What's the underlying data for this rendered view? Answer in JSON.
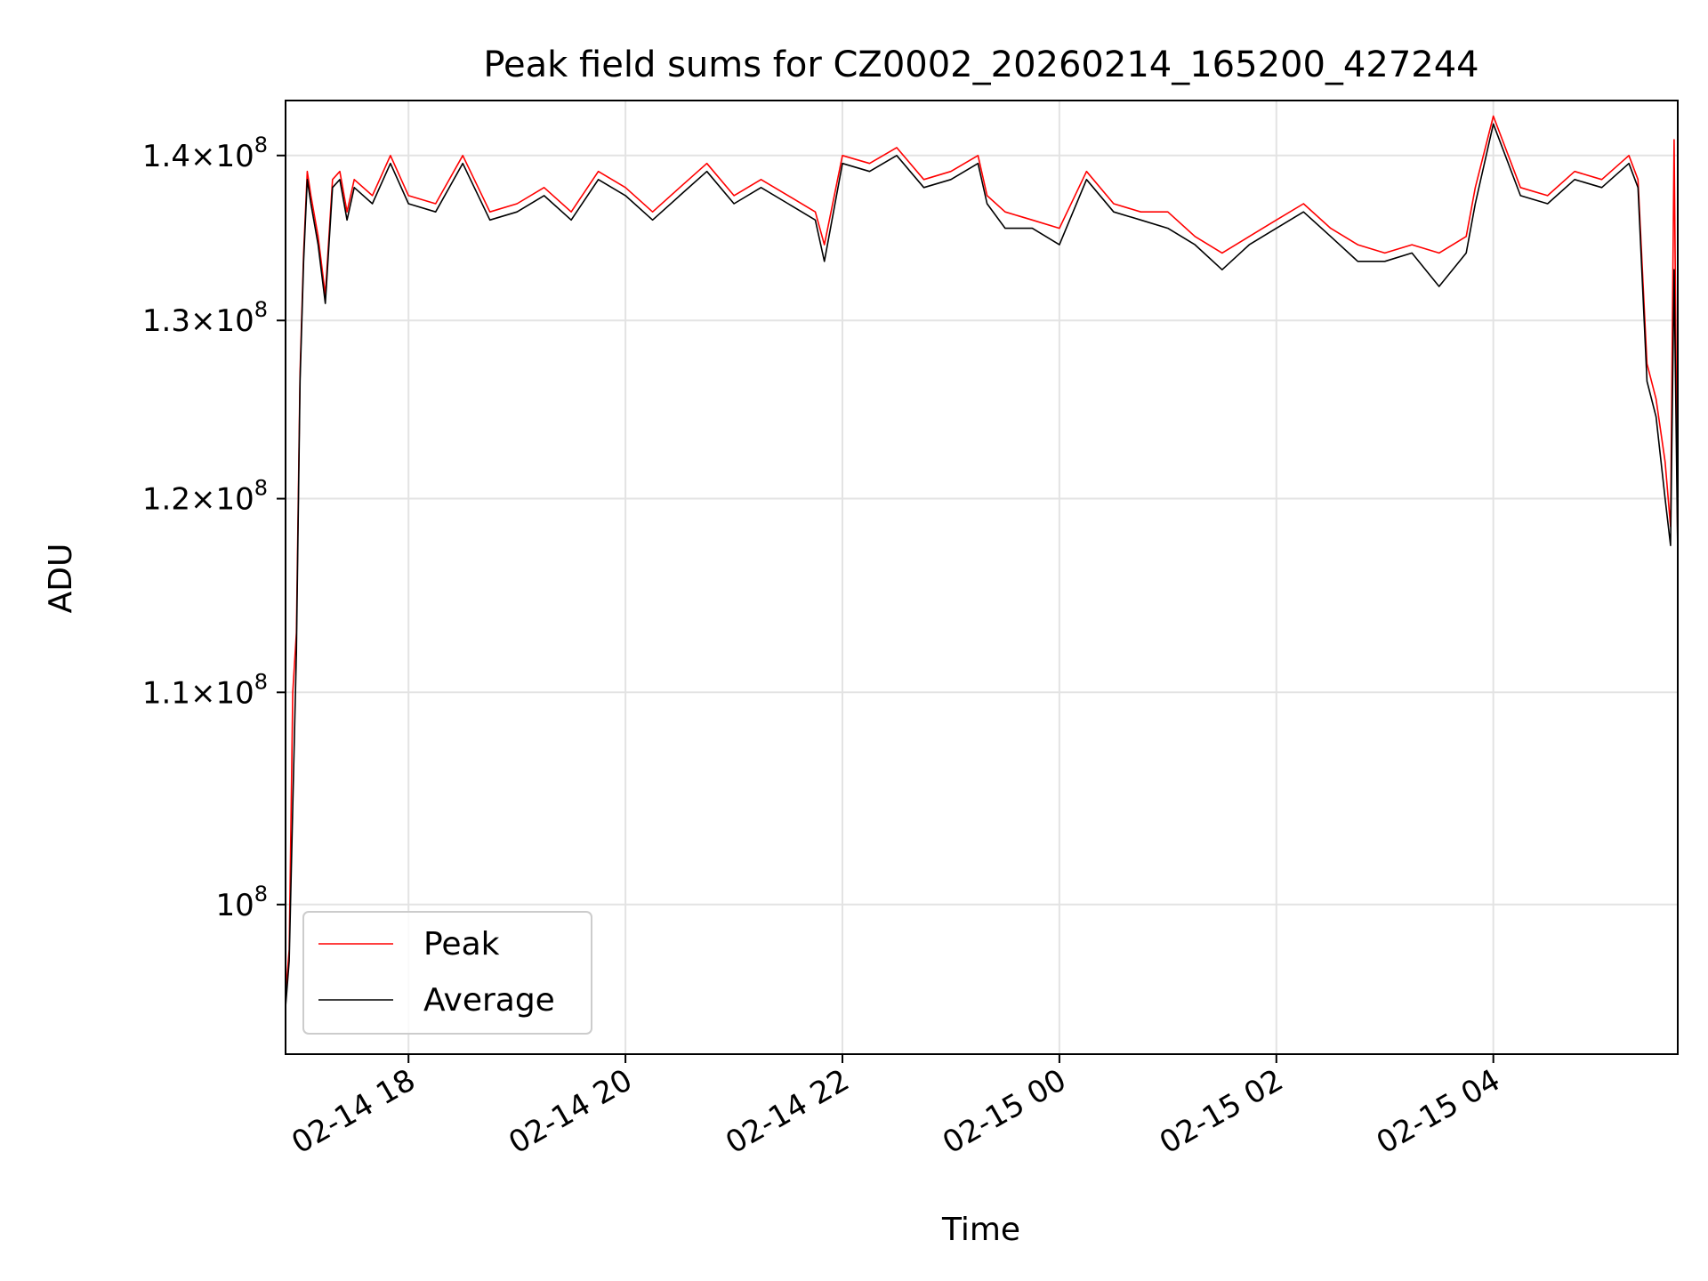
{
  "chart_data": {
    "type": "line",
    "title": "Peak field sums for CZ0002_20260214_165200_427244",
    "xlabel": "Time",
    "ylabel": "ADU",
    "y_scale": "log",
    "ylim": [
      93500000,
      143500000
    ],
    "xlim": [
      "2026-02-14 16:52",
      "2026-02-15 05:42"
    ],
    "grid": true,
    "legend_position": "lower-left",
    "x_ticks": [
      {
        "value": "2026-02-14 18:00",
        "label": "02-14 18"
      },
      {
        "value": "2026-02-14 20:00",
        "label": "02-14 20"
      },
      {
        "value": "2026-02-14 22:00",
        "label": "02-14 22"
      },
      {
        "value": "2026-02-15 00:00",
        "label": "02-15 00"
      },
      {
        "value": "2026-02-15 02:00",
        "label": "02-15 02"
      },
      {
        "value": "2026-02-15 04:00",
        "label": "02-15 04"
      }
    ],
    "y_ticks": [
      {
        "value": 100000000,
        "mantissa": "",
        "exponent": "8"
      },
      {
        "value": 110000000,
        "mantissa": "1.1",
        "exponent": "8"
      },
      {
        "value": 120000000,
        "mantissa": "1.2",
        "exponent": "8"
      },
      {
        "value": 130000000,
        "mantissa": "1.3",
        "exponent": "8"
      },
      {
        "value": 140000000,
        "mantissa": "1.4",
        "exponent": "8"
      }
    ],
    "series": [
      {
        "name": "Peak",
        "color": "#ff0000",
        "x": [
          "2026-02-14 16:52",
          "2026-02-14 16:54",
          "2026-02-14 16:56",
          "2026-02-14 16:58",
          "2026-02-14 17:00",
          "2026-02-14 17:02",
          "2026-02-14 17:04",
          "2026-02-14 17:06",
          "2026-02-14 17:10",
          "2026-02-14 17:14",
          "2026-02-14 17:18",
          "2026-02-14 17:22",
          "2026-02-14 17:26",
          "2026-02-14 17:30",
          "2026-02-14 17:40",
          "2026-02-14 17:50",
          "2026-02-14 18:00",
          "2026-02-14 18:15",
          "2026-02-14 18:30",
          "2026-02-14 18:45",
          "2026-02-14 19:00",
          "2026-02-14 19:15",
          "2026-02-14 19:30",
          "2026-02-14 19:45",
          "2026-02-14 20:00",
          "2026-02-14 20:15",
          "2026-02-14 20:30",
          "2026-02-14 20:45",
          "2026-02-14 21:00",
          "2026-02-14 21:15",
          "2026-02-14 21:30",
          "2026-02-14 21:45",
          "2026-02-14 21:50",
          "2026-02-14 22:00",
          "2026-02-14 22:15",
          "2026-02-14 22:30",
          "2026-02-14 22:45",
          "2026-02-14 23:00",
          "2026-02-14 23:15",
          "2026-02-14 23:20",
          "2026-02-14 23:30",
          "2026-02-14 23:45",
          "2026-02-15 00:00",
          "2026-02-15 00:15",
          "2026-02-15 00:30",
          "2026-02-15 00:45",
          "2026-02-15 01:00",
          "2026-02-15 01:15",
          "2026-02-15 01:30",
          "2026-02-15 01:45",
          "2026-02-15 02:00",
          "2026-02-15 02:15",
          "2026-02-15 02:30",
          "2026-02-15 02:45",
          "2026-02-15 03:00",
          "2026-02-15 03:15",
          "2026-02-15 03:30",
          "2026-02-15 03:45",
          "2026-02-15 03:50",
          "2026-02-15 04:00",
          "2026-02-15 04:15",
          "2026-02-15 04:30",
          "2026-02-15 04:45",
          "2026-02-15 05:00",
          "2026-02-15 05:15",
          "2026-02-15 05:20",
          "2026-02-15 05:25",
          "2026-02-15 05:30",
          "2026-02-15 05:35",
          "2026-02-15 05:38",
          "2026-02-15 05:40",
          "2026-02-15 05:42"
        ],
        "values": [
          96000000,
          98000000,
          110000000,
          113000000,
          127000000,
          134000000,
          139000000,
          137500000,
          135000000,
          131500000,
          138500000,
          139000000,
          136500000,
          138500000,
          137500000,
          140000000,
          137500000,
          137000000,
          140000000,
          136500000,
          137000000,
          138000000,
          136500000,
          139000000,
          138000000,
          136500000,
          138000000,
          139500000,
          137500000,
          138500000,
          137500000,
          136500000,
          134500000,
          140000000,
          139500000,
          140500000,
          138500000,
          139000000,
          140000000,
          137500000,
          136500000,
          136000000,
          135500000,
          139000000,
          137000000,
          136500000,
          136500000,
          135000000,
          134000000,
          135000000,
          136000000,
          137000000,
          135500000,
          134500000,
          134000000,
          134500000,
          134000000,
          135000000,
          138000000,
          142500000,
          138000000,
          137500000,
          139000000,
          138500000,
          140000000,
          138500000,
          127500000,
          125500000,
          122000000,
          118500000,
          141000000,
          117000000
        ]
      },
      {
        "name": "Average",
        "color": "#000000",
        "x": [
          "2026-02-14 16:52",
          "2026-02-14 16:54",
          "2026-02-14 16:56",
          "2026-02-14 16:58",
          "2026-02-14 17:00",
          "2026-02-14 17:02",
          "2026-02-14 17:04",
          "2026-02-14 17:06",
          "2026-02-14 17:10",
          "2026-02-14 17:14",
          "2026-02-14 17:18",
          "2026-02-14 17:22",
          "2026-02-14 17:26",
          "2026-02-14 17:30",
          "2026-02-14 17:40",
          "2026-02-14 17:50",
          "2026-02-14 18:00",
          "2026-02-14 18:15",
          "2026-02-14 18:30",
          "2026-02-14 18:45",
          "2026-02-14 19:00",
          "2026-02-14 19:15",
          "2026-02-14 19:30",
          "2026-02-14 19:45",
          "2026-02-14 20:00",
          "2026-02-14 20:15",
          "2026-02-14 20:30",
          "2026-02-14 20:45",
          "2026-02-14 21:00",
          "2026-02-14 21:15",
          "2026-02-14 21:30",
          "2026-02-14 21:45",
          "2026-02-14 21:50",
          "2026-02-14 22:00",
          "2026-02-14 22:15",
          "2026-02-14 22:30",
          "2026-02-14 22:45",
          "2026-02-14 23:00",
          "2026-02-14 23:15",
          "2026-02-14 23:20",
          "2026-02-14 23:30",
          "2026-02-14 23:45",
          "2026-02-15 00:00",
          "2026-02-15 00:15",
          "2026-02-15 00:30",
          "2026-02-15 00:45",
          "2026-02-15 01:00",
          "2026-02-15 01:15",
          "2026-02-15 01:30",
          "2026-02-15 01:45",
          "2026-02-15 02:00",
          "2026-02-15 02:15",
          "2026-02-15 02:30",
          "2026-02-15 02:45",
          "2026-02-15 03:00",
          "2026-02-15 03:15",
          "2026-02-15 03:30",
          "2026-02-15 03:45",
          "2026-02-15 03:50",
          "2026-02-15 04:00",
          "2026-02-15 04:15",
          "2026-02-15 04:30",
          "2026-02-15 04:45",
          "2026-02-15 05:00",
          "2026-02-15 05:15",
          "2026-02-15 05:20",
          "2026-02-15 05:25",
          "2026-02-15 05:30",
          "2026-02-15 05:35",
          "2026-02-15 05:38",
          "2026-02-15 05:40",
          "2026-02-15 05:42"
        ],
        "values": [
          95500000,
          97500000,
          104500000,
          112000000,
          126500000,
          133500000,
          138500000,
          137000000,
          134500000,
          131000000,
          138000000,
          138500000,
          136000000,
          138000000,
          137000000,
          139500000,
          137000000,
          136500000,
          139500000,
          136000000,
          136500000,
          137500000,
          136000000,
          138500000,
          137500000,
          136000000,
          137500000,
          139000000,
          137000000,
          138000000,
          137000000,
          136000000,
          133500000,
          139500000,
          139000000,
          140000000,
          138000000,
          138500000,
          139500000,
          137000000,
          135500000,
          135500000,
          134500000,
          138500000,
          136500000,
          136000000,
          135500000,
          134500000,
          133000000,
          134500000,
          135500000,
          136500000,
          135000000,
          133500000,
          133500000,
          134000000,
          132000000,
          134000000,
          137000000,
          142000000,
          137500000,
          137000000,
          138500000,
          138000000,
          139500000,
          138000000,
          126500000,
          124500000,
          120000000,
          117500000,
          133000000,
          117000000
        ]
      }
    ]
  }
}
